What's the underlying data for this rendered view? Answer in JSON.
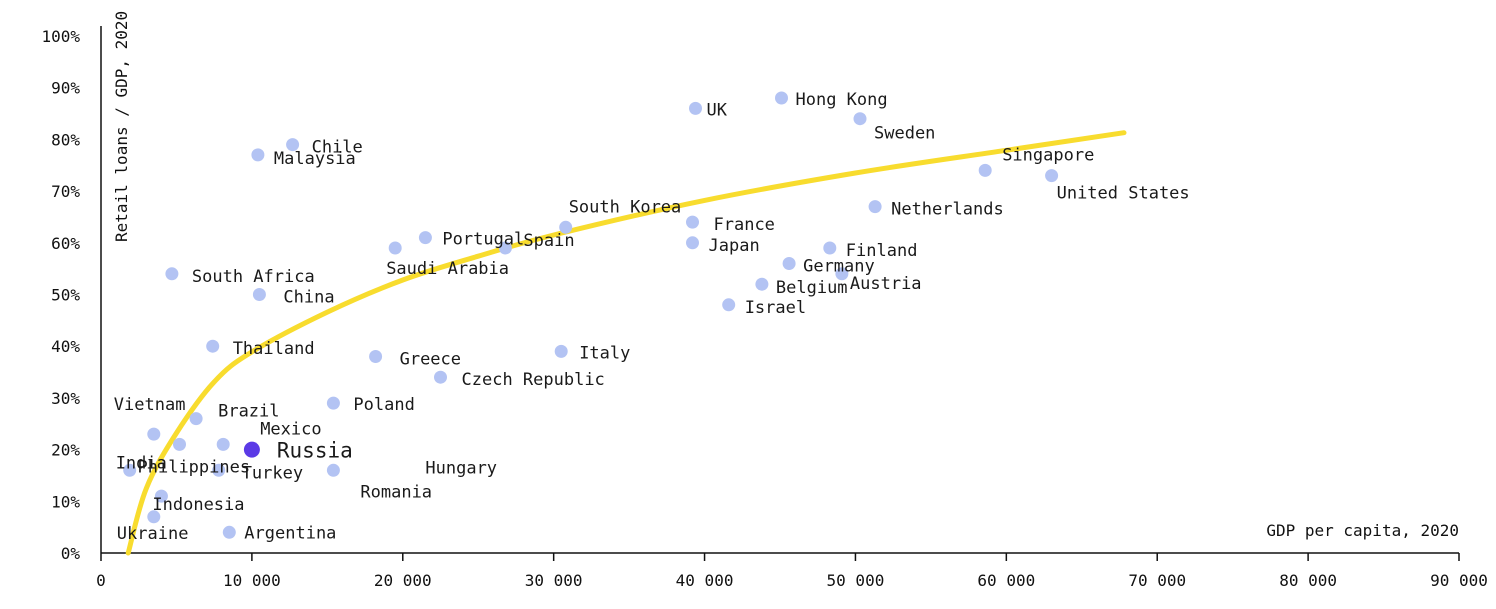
{
  "chart_data": {
    "type": "scatter",
    "xlabel": "GDP per capita, 2020",
    "ylabel": "Retail loans / GDP, 2020",
    "xlim": [
      0,
      90000
    ],
    "ylim": [
      0,
      100
    ],
    "x_ticks": [
      0,
      10000,
      20000,
      30000,
      40000,
      50000,
      60000,
      70000,
      80000,
      90000
    ],
    "x_tick_labels": [
      "0",
      "10 000",
      "20 000",
      "30 000",
      "40 000",
      "50 000",
      "60 000",
      "70 000",
      "80 000",
      "90 000"
    ],
    "y_ticks": [
      0,
      10,
      20,
      30,
      40,
      50,
      60,
      70,
      80,
      90,
      100
    ],
    "y_tick_labels": [
      "0%",
      "10%",
      "20%",
      "30%",
      "40%",
      "50%",
      "60%",
      "70%",
      "80%",
      "90%",
      "100%"
    ],
    "grid": false,
    "colors": {
      "point": "#b3c3f3",
      "highlight": "#5b3ae6",
      "trend": "#f8dc2e",
      "axis": "#111111"
    },
    "trend_line": {
      "x": [
        1800,
        3000,
        5000,
        7500,
        10000,
        15000,
        20000,
        25000,
        30000,
        40000,
        50000,
        60000,
        67800
      ],
      "y": [
        0,
        12.5,
        23.2,
        33.1,
        38.9,
        46.6,
        52.8,
        57.4,
        61.5,
        68.2,
        73.5,
        77.9,
        81.3
      ]
    },
    "points": [
      {
        "label": "UK",
        "x": 39400,
        "y": 86
      },
      {
        "label": "Hong Kong",
        "x": 45100,
        "y": 88
      },
      {
        "label": "Sweden",
        "x": 50300,
        "y": 84
      },
      {
        "label": "Chile",
        "x": 12700,
        "y": 79
      },
      {
        "label": "Malaysia",
        "x": 10400,
        "y": 77
      },
      {
        "label": "Singapore",
        "x": 58600,
        "y": 74
      },
      {
        "label": "United States",
        "x": 63000,
        "y": 73
      },
      {
        "label": "South Korea",
        "x": 30800,
        "y": 63
      },
      {
        "label": "France",
        "x": 39200,
        "y": 64
      },
      {
        "label": "Netherlands",
        "x": 51300,
        "y": 67
      },
      {
        "label": "Portugal",
        "x": 21500,
        "y": 61
      },
      {
        "label": "Spain",
        "x": 26800,
        "y": 59
      },
      {
        "label": "Saudi Arabia",
        "x": 19500,
        "y": 59
      },
      {
        "label": "Japan",
        "x": 39200,
        "y": 60
      },
      {
        "label": "Finland",
        "x": 48300,
        "y": 59
      },
      {
        "label": "Germany",
        "x": 45600,
        "y": 56
      },
      {
        "label": "Austria",
        "x": 49100,
        "y": 54
      },
      {
        "label": "Belgium",
        "x": 43800,
        "y": 52
      },
      {
        "label": "Israel",
        "x": 41600,
        "y": 48
      },
      {
        "label": "South Africa",
        "x": 4700,
        "y": 54
      },
      {
        "label": "China",
        "x": 10500,
        "y": 50
      },
      {
        "label": "Thailand",
        "x": 7400,
        "y": 40
      },
      {
        "label": "Greece",
        "x": 18200,
        "y": 38
      },
      {
        "label": "Italy",
        "x": 30500,
        "y": 39
      },
      {
        "label": "Czech Republic",
        "x": 22500,
        "y": 34
      },
      {
        "label": "Poland",
        "x": 15400,
        "y": 29
      },
      {
        "label": "Vietnam",
        "x": 3500,
        "y": 23
      },
      {
        "label": "Brazil",
        "x": 6300,
        "y": 26
      },
      {
        "label": "Mexico",
        "x": 8100,
        "y": 21
      },
      {
        "label": "India",
        "x": 1900,
        "y": 16
      },
      {
        "label": "Philippines",
        "x": 5200,
        "y": 21
      },
      {
        "label": "Turkey",
        "x": 7800,
        "y": 16
      },
      {
        "label": "Russia",
        "x": 10000,
        "y": 20,
        "highlight": true
      },
      {
        "label": "Romania",
        "x": 15400,
        "y": 16
      },
      {
        "label": "Indonesia",
        "x": 4000,
        "y": 11
      },
      {
        "label": "Ukraine",
        "x": 3500,
        "y": 7
      },
      {
        "label": "Argentina",
        "x": 8500,
        "y": 4
      },
      {
        "label": "Hungary",
        "x": 15400,
        "y": 16,
        "unmarked": true
      }
    ]
  }
}
